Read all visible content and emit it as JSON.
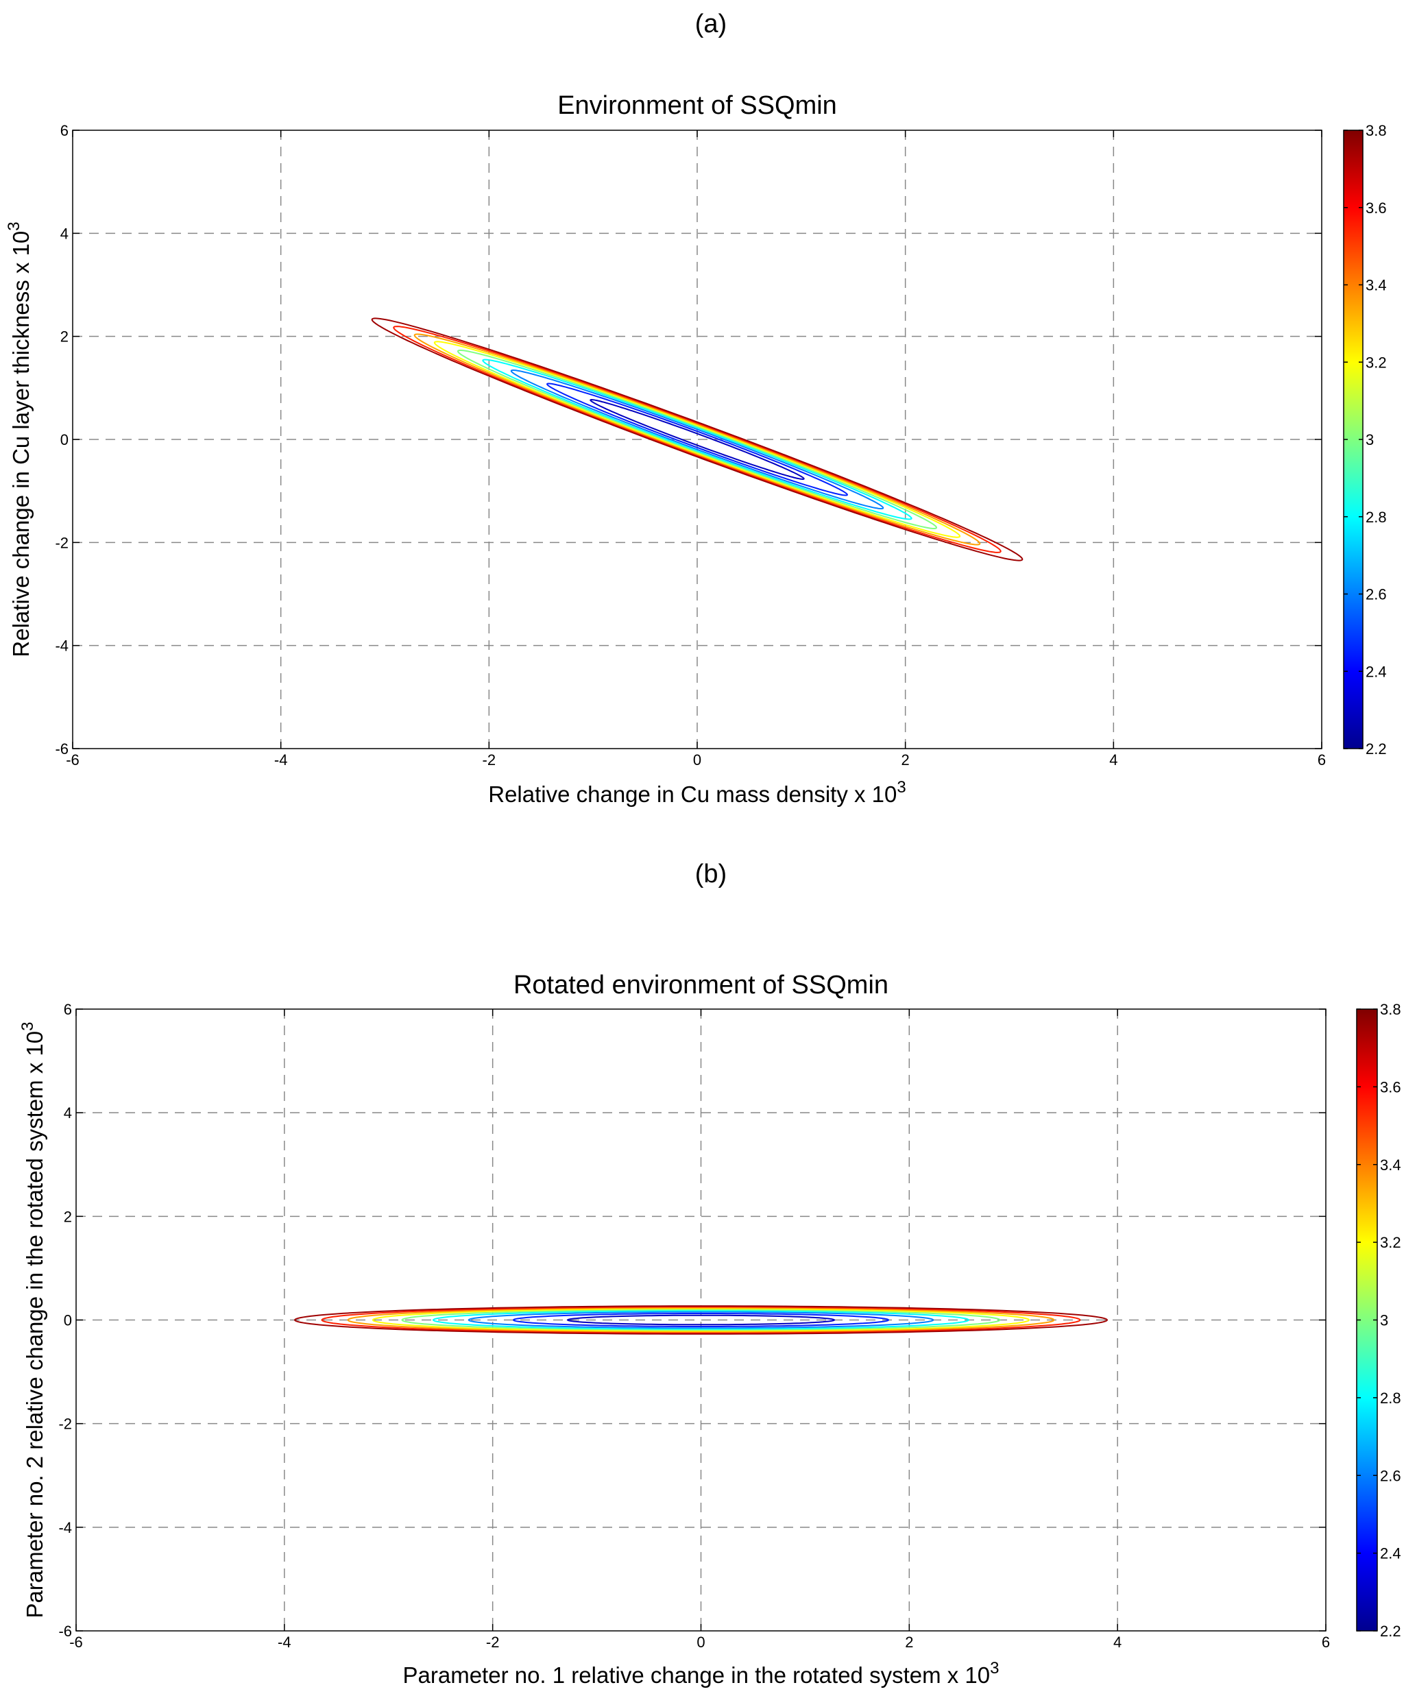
{
  "chart_data": [
    {
      "type": "contour",
      "panel_label": "(a)",
      "title": "Environment of SSQmin",
      "xlabel": "Relative change in Cu mass density x 10",
      "xlabel_exp": "3",
      "ylabel": "Relative change in Cu layer thickness x 10",
      "ylabel_exp": "3",
      "xlim": [
        -6,
        6
      ],
      "ylim": [
        -6,
        6
      ],
      "xticks": [
        "-6",
        "-4",
        "-2",
        "0",
        "2",
        "4",
        "6"
      ],
      "yticks": [
        "-6",
        "-4",
        "-2",
        "0",
        "2",
        "4",
        "6"
      ],
      "grid": true,
      "rotation_direction": [
        0.8,
        -0.6
      ],
      "contours": [
        {
          "level": 2.3,
          "semi_major": 1.28,
          "semi_minor": 0.09
        },
        {
          "level": 2.45,
          "semi_major": 1.8,
          "semi_minor": 0.126
        },
        {
          "level": 2.6,
          "semi_major": 2.23,
          "semi_minor": 0.156
        },
        {
          "level": 2.8,
          "semi_major": 2.57,
          "semi_minor": 0.18
        },
        {
          "level": 3.0,
          "semi_major": 2.87,
          "semi_minor": 0.2
        },
        {
          "level": 3.2,
          "semi_major": 3.15,
          "semi_minor": 0.22
        },
        {
          "level": 3.35,
          "semi_major": 3.39,
          "semi_minor": 0.237
        },
        {
          "level": 3.55,
          "semi_major": 3.64,
          "semi_minor": 0.255
        },
        {
          "level": 3.75,
          "semi_major": 3.9,
          "semi_minor": 0.27
        }
      ],
      "colorbar": {
        "range": [
          2.2,
          3.8
        ],
        "ticks": [
          "2.2",
          "2.4",
          "2.6",
          "2.8",
          "3",
          "3.2",
          "3.4",
          "3.6",
          "3.8"
        ]
      }
    },
    {
      "type": "contour",
      "panel_label": "(b)",
      "title": "Rotated environment of SSQmin",
      "xlabel": "Parameter no. 1 relative change in the rotated system x 10",
      "xlabel_exp": "3",
      "ylabel": "Parameter no. 2 relative change in the rotated system x 10",
      "ylabel_exp": "3",
      "xlim": [
        -6,
        6
      ],
      "ylim": [
        -6,
        6
      ],
      "xticks": [
        "-6",
        "-4",
        "-2",
        "0",
        "2",
        "4",
        "6"
      ],
      "yticks": [
        "-6",
        "-4",
        "-2",
        "0",
        "2",
        "4",
        "6"
      ],
      "grid": true,
      "rotation_direction": [
        1,
        0
      ],
      "contours": [
        {
          "level": 2.3,
          "semi_major": 1.28,
          "semi_minor": 0.09
        },
        {
          "level": 2.45,
          "semi_major": 1.8,
          "semi_minor": 0.126
        },
        {
          "level": 2.6,
          "semi_major": 2.23,
          "semi_minor": 0.156
        },
        {
          "level": 2.8,
          "semi_major": 2.57,
          "semi_minor": 0.18
        },
        {
          "level": 3.0,
          "semi_major": 2.87,
          "semi_minor": 0.2
        },
        {
          "level": 3.2,
          "semi_major": 3.15,
          "semi_minor": 0.22
        },
        {
          "level": 3.35,
          "semi_major": 3.39,
          "semi_minor": 0.237
        },
        {
          "level": 3.55,
          "semi_major": 3.64,
          "semi_minor": 0.255
        },
        {
          "level": 3.75,
          "semi_major": 3.9,
          "semi_minor": 0.27
        }
      ],
      "colorbar": {
        "range": [
          2.2,
          3.8
        ],
        "ticks": [
          "2.2",
          "2.4",
          "2.6",
          "2.8",
          "3",
          "3.2",
          "3.4",
          "3.6",
          "3.8"
        ]
      }
    }
  ]
}
